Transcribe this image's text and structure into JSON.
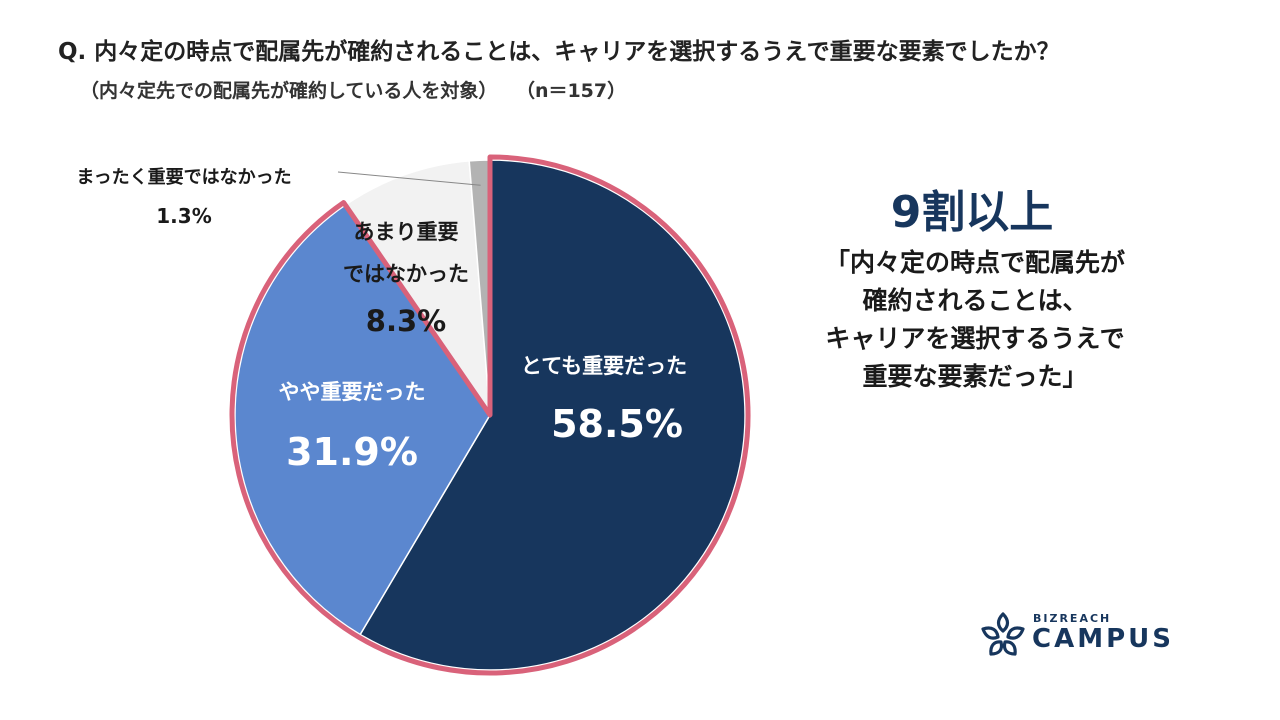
{
  "question": "Q. 内々定の時点で配属先が確約されることは、キャリアを選択するうえで重要な要素でしたか？",
  "subtitle": "（内々定先での配属先が確約している人を対象）",
  "sample": "（n＝157）",
  "callout": {
    "headline": "9割以上",
    "lines": [
      "「内々定の時点で配属先が",
      "確約されることは、",
      "キャリアを選択するうえで",
      "重要な要素だった」"
    ]
  },
  "logo": {
    "top": "BIZREACH",
    "main": "CAMPUS"
  },
  "colors": {
    "very_important": "#17365d",
    "somewhat_important": "#5b87cf",
    "not_very_important": "#f2f2f2",
    "not_at_all": "#b3b3b3",
    "highlight_border": "#d9627a",
    "brand": "#17365d"
  },
  "chart_data": {
    "type": "pie",
    "slices": [
      {
        "label": "とても重要だった",
        "value": 58.5,
        "display": "58.5%",
        "color": "#17365d"
      },
      {
        "label": "やや重要だった",
        "value": 31.9,
        "display": "31.9%",
        "color": "#5b87cf"
      },
      {
        "label": "あまり重要ではなかった",
        "value": 8.3,
        "display": "8.3%",
        "color": "#f2f2f2"
      },
      {
        "label": "まったく重要ではなかった",
        "value": 1.3,
        "display": "1.3%",
        "color": "#b3b3b3"
      }
    ],
    "highlighted_slices": [
      "とても重要だった",
      "やや重要だった"
    ]
  }
}
